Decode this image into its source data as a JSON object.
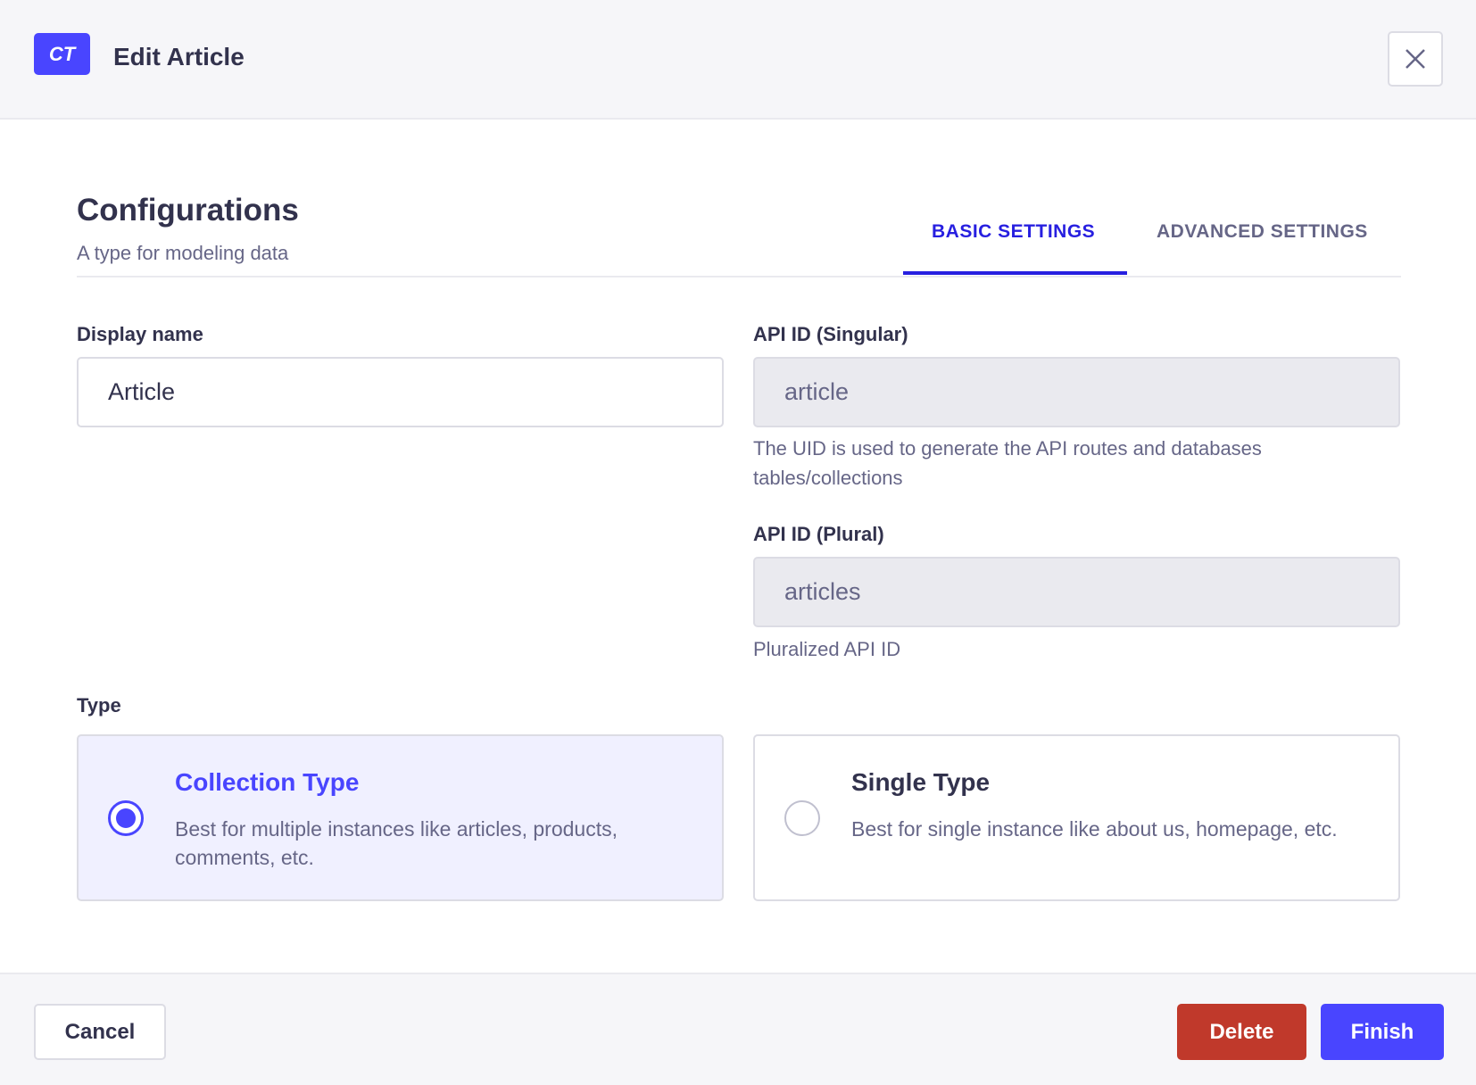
{
  "header": {
    "badge": "CT",
    "title": "Edit Article",
    "close_icon": "close-icon"
  },
  "section": {
    "title": "Configurations",
    "subtitle": "A type for modeling data"
  },
  "tabs": [
    {
      "label": "BASIC SETTINGS",
      "active": true
    },
    {
      "label": "ADVANCED SETTINGS",
      "active": false
    }
  ],
  "fields": {
    "display_name": {
      "label": "Display name",
      "value": "Article"
    },
    "api_singular": {
      "label": "API ID (Singular)",
      "value": "article",
      "help": "The UID is used to generate the API routes and databases tables/collections"
    },
    "api_plural": {
      "label": "API ID (Plural)",
      "value": "articles",
      "help": "Pluralized API ID"
    }
  },
  "type": {
    "label": "Type",
    "options": [
      {
        "title": "Collection Type",
        "description": "Best for multiple instances like articles, products, comments, etc.",
        "selected": true
      },
      {
        "title": "Single Type",
        "description": "Best for single instance like about us, homepage, etc.",
        "selected": false
      }
    ]
  },
  "footer": {
    "cancel": "Cancel",
    "delete": "Delete",
    "finish": "Finish"
  },
  "colors": {
    "primary": "#4945ff",
    "danger": "#c0392b",
    "selected_bg": "#f0f0ff"
  }
}
